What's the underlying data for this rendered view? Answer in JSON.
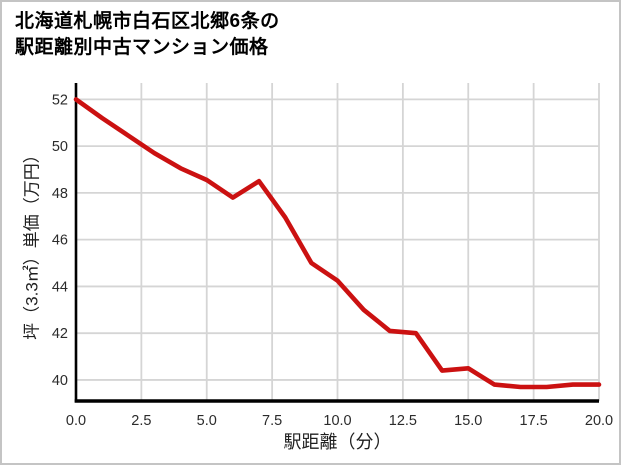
{
  "title": {
    "line1": "北海道札幌市白石区北郷6条の",
    "line2": "駅距離別中古マンション価格"
  },
  "chart_data": {
    "type": "line",
    "title": "北海道札幌市白石区北郷6条の駅距離別中古マンション価格",
    "xlabel": "駅距離（分）",
    "ylabel": "坪（3.3㎡）単価（万円）",
    "x": [
      0,
      1,
      2,
      3,
      4,
      5,
      6,
      7,
      8,
      9,
      10,
      11,
      12,
      13,
      14,
      15,
      16,
      17,
      18,
      19,
      20
    ],
    "values": [
      52.0,
      51.2,
      50.45,
      49.7,
      49.05,
      48.55,
      47.8,
      48.5,
      46.95,
      45.0,
      44.25,
      43.0,
      42.1,
      42.0,
      40.4,
      40.5,
      39.8,
      39.7,
      39.7,
      39.8,
      39.8
    ],
    "series_name": "坪単価（万円）",
    "x_tick_values": [
      0,
      2.5,
      5,
      7.5,
      10,
      12.5,
      15,
      17.5,
      20
    ],
    "x_tick_labels": [
      "0.0",
      "2.5",
      "5.0",
      "7.5",
      "10.0",
      "12.5",
      "15.0",
      "17.5",
      "20.0"
    ],
    "y_tick_values": [
      52,
      50,
      48,
      46,
      44,
      42,
      40
    ],
    "y_tick_labels": [
      "52",
      "50",
      "48",
      "46",
      "44",
      "42",
      "40"
    ],
    "xlim": [
      0,
      20
    ],
    "ylim": [
      39.1,
      52.7
    ],
    "grid": true,
    "legend": false,
    "line_color": "#cb1111",
    "grid_color": "#d5d5d5",
    "axis_color": "#000000",
    "tick_label_color": "#2b2b2b"
  }
}
